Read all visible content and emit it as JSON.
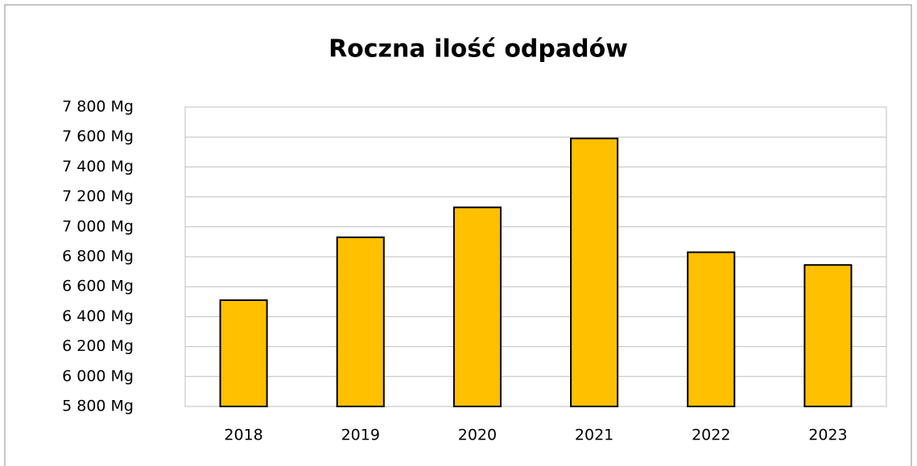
{
  "chart_data": {
    "type": "bar",
    "title": "Roczna ilość odpadów",
    "categories": [
      "2018",
      "2019",
      "2020",
      "2021",
      "2022",
      "2023"
    ],
    "values": [
      6510,
      6930,
      7130,
      7590,
      6830,
      6745
    ],
    "color": "#ffc000",
    "ylim": [
      5800,
      7800
    ],
    "yticks": [
      {
        "value": 5800,
        "label": "5 800 Mg"
      },
      {
        "value": 6000,
        "label": "6 000 Mg"
      },
      {
        "value": 6200,
        "label": "6 200 Mg"
      },
      {
        "value": 6400,
        "label": "6 400 Mg"
      },
      {
        "value": 6600,
        "label": "6 600 Mg"
      },
      {
        "value": 6800,
        "label": "6 800 Mg"
      },
      {
        "value": 7000,
        "label": "7 000 Mg"
      },
      {
        "value": 7200,
        "label": "7 200 Mg"
      },
      {
        "value": 7400,
        "label": "7 400 Mg"
      },
      {
        "value": 7600,
        "label": "7 600 Mg"
      },
      {
        "value": 7800,
        "label": "7 800 Mg"
      }
    ],
    "grid": true
  }
}
